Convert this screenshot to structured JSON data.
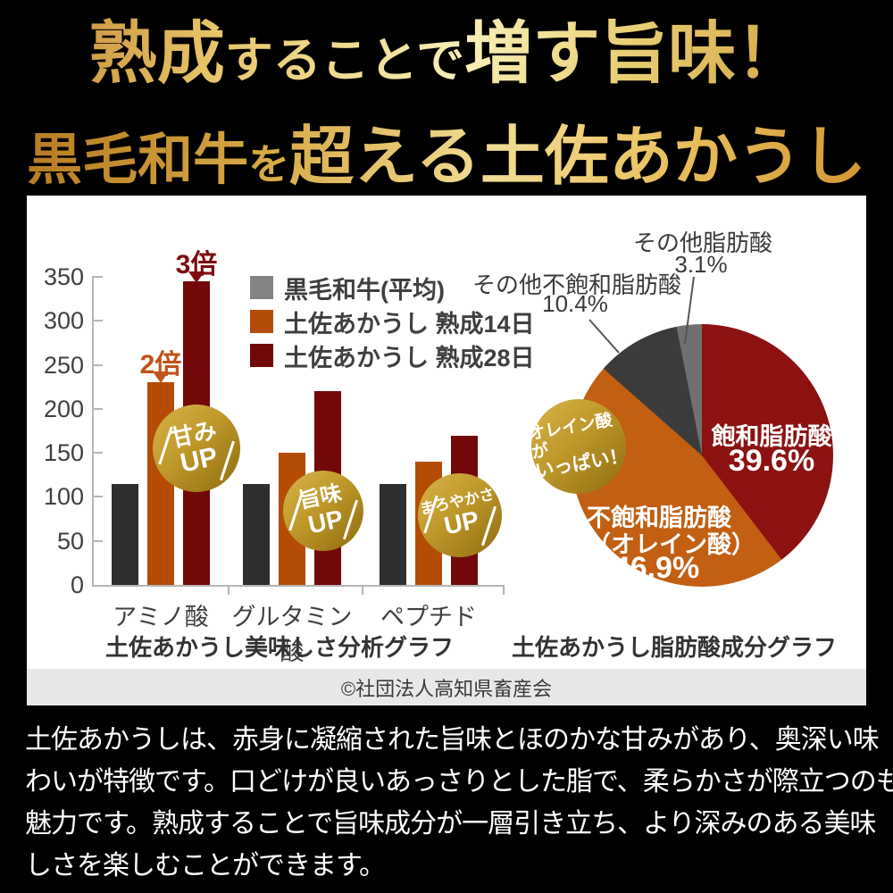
{
  "header": {
    "line1": [
      {
        "text": "熟成",
        "size": "xl"
      },
      {
        "text": "することで",
        "size": "md"
      },
      {
        "text": "増す旨味！",
        "size": "xl"
      }
    ],
    "line2": [
      {
        "text": "黒毛和牛",
        "size": "lg"
      },
      {
        "text": "を",
        "size": "sm"
      },
      {
        "text": "超える",
        "size": "xl2"
      },
      {
        "text": "土佐あかうし",
        "size": "xl2"
      }
    ]
  },
  "chart_data": [
    {
      "type": "bar",
      "title": "土佐あかうし美味しさ分析グラフ",
      "categories": [
        "アミノ酸",
        "グルタミン酸",
        "ペプチド"
      ],
      "series": [
        {
          "name": "黒毛和牛(平均)",
          "color": "#2e2e2e",
          "legend_color": "#848484",
          "values": [
            115,
            115,
            115
          ]
        },
        {
          "name": "土佐あかうし 熟成14日",
          "color": "#b44c04",
          "values": [
            230,
            150,
            140
          ]
        },
        {
          "name": "土佐あかうし 熟成28日",
          "color": "#730808",
          "values": [
            345,
            220,
            170
          ]
        }
      ],
      "ylim": [
        0,
        350
      ],
      "yticks": [
        0,
        50,
        100,
        150,
        200,
        250,
        300,
        350
      ],
      "grid": false,
      "legend_position": "top-right",
      "annotations": [
        {
          "text": "2倍",
          "color": "#c0521a",
          "target": "アミノ酸 土佐あかうし熟成14日"
        },
        {
          "text": "3倍",
          "color": "#7d0d0d",
          "target": "アミノ酸 土佐あかうし熟成28日"
        }
      ],
      "badges": [
        {
          "lines": [
            "甘み",
            "UP"
          ]
        },
        {
          "lines": [
            "旨味",
            "UP"
          ]
        },
        {
          "lines": [
            "まろやかさ",
            "UP"
          ]
        }
      ]
    },
    {
      "type": "pie",
      "title": "土佐あかうし脂肪酸成分グラフ",
      "start_angle_deg": 0,
      "direction": "clockwise",
      "slices": [
        {
          "label": "飽和脂肪酸",
          "pct": 39.6,
          "pct_label": "39.6%",
          "color": "#8c1212",
          "label_position": "inside"
        },
        {
          "label": "不飽和脂肪酸（オレイン酸）",
          "display": [
            "不飽和脂肪酸",
            "（オレイン酸）"
          ],
          "pct": 46.9,
          "pct_label": "46.9%",
          "color": "#c25f12",
          "label_position": "inside"
        },
        {
          "label": "その他不飽和脂肪酸",
          "pct": 10.4,
          "pct_label": "10.4%",
          "color": "#3b3b3b",
          "label_position": "callout"
        },
        {
          "label": "その他脂肪酸",
          "pct": 3.1,
          "pct_label": "3.1%",
          "color": "#707070",
          "label_position": "callout"
        }
      ],
      "badge": {
        "lines": [
          "オレイン酸が",
          "いっぱい！"
        ]
      }
    }
  ],
  "panel": {
    "credit": "©社団法人高知県畜産会"
  },
  "body_text": {
    "lines": [
      "土佐あかうしは、赤身に凝縮された旨味とほのかな甘みがあり、奥深い味",
      "わいが特徴です。口どけが良いあっさりとした脂で、柔らかさが際立つのも",
      "魅力です。熟成することで旨味成分が一層引き立ち、より深みのある美味",
      "しさを楽しむことができます。"
    ]
  },
  "colors": {
    "background": "#000000",
    "panel": "#ffffff",
    "footer_bar": "#e8e8e8",
    "gold_badge_light": "#d8b449",
    "gold_badge_dark": "#8e6c10",
    "axis": "#b5b5b5",
    "text_dark": "#3f3f3f",
    "pie_label_text": "#ffffff"
  }
}
